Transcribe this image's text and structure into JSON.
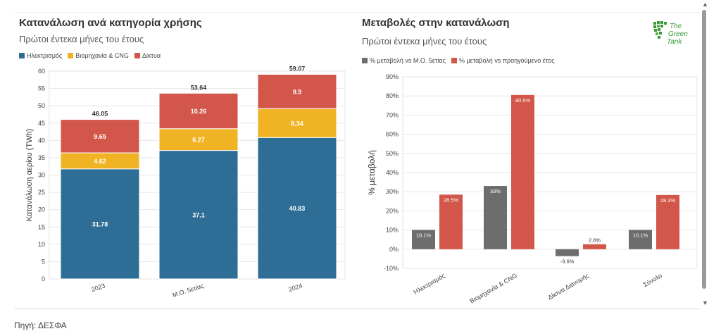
{
  "left_panel": {
    "title": "Κατανάλωση ανά κατηγορία χρήσης",
    "subtitle": "Πρώτοι έντεκα μήνες του έτους"
  },
  "right_panel": {
    "title": "Μεταβολές στην κατανάλωση",
    "subtitle": "Πρώτοι έντεκα μήνες του έτους"
  },
  "logo": {
    "line1": "The",
    "line2": "Green",
    "line3": "Tank",
    "color": "#3a9a3a"
  },
  "source": "Πηγή: ΔΕΣΦΑ",
  "chart_data": [
    {
      "type": "bar",
      "stacked": true,
      "categories": [
        "2023",
        "Μ.Ο. 5ετίας",
        "2024"
      ],
      "series": [
        {
          "name": "Ηλεκτρισμός",
          "color": "#2e6e96",
          "values": [
            31.78,
            37.1,
            40.83
          ]
        },
        {
          "name": "Βιομηχανία & CNG",
          "color": "#f0b323",
          "values": [
            4.62,
            6.27,
            8.34
          ]
        },
        {
          "name": "Δίκτυα",
          "color": "#d2574a",
          "values": [
            9.65,
            10.26,
            9.9
          ]
        }
      ],
      "totals": [
        "46.05",
        "53.64",
        "59.07"
      ],
      "ylabel": "Κατανάλωση αερίου (TWh)",
      "xlabel": "",
      "ylim": [
        0,
        60
      ],
      "yticks": [
        0,
        5,
        10,
        15,
        20,
        25,
        30,
        35,
        40,
        45,
        50,
        55,
        60
      ],
      "grid": true,
      "legend": "top-left"
    },
    {
      "type": "bar",
      "stacked": false,
      "categories": [
        "Ηλεκτρισμός",
        "Βιομηχανία & CNG",
        "Δίκτυα Διανομής",
        "Σύνολο"
      ],
      "series": [
        {
          "name": "% μεταβολή vs Μ.Ο. 5ετίας",
          "color": "#6d6d6d",
          "values": [
            10.1,
            33,
            -3.6,
            10.1
          ],
          "labels": [
            "10.1%",
            "33%",
            "-3.6%",
            "10.1%"
          ]
        },
        {
          "name": "% μεταβολή vs προηγούμενο έτος",
          "color": "#d2574a",
          "values": [
            28.5,
            80.5,
            2.6,
            28.3
          ],
          "labels": [
            "28.5%",
            "80.5%",
            "2.6%",
            "28.3%"
          ]
        }
      ],
      "ylabel": "% μεταβολή",
      "xlabel": "",
      "ylim": [
        -10,
        90
      ],
      "yticks": [
        "-10%",
        "0%",
        "10%",
        "20%",
        "30%",
        "40%",
        "50%",
        "60%",
        "70%",
        "80%",
        "90%"
      ],
      "grid": true,
      "legend": "top-left"
    }
  ]
}
